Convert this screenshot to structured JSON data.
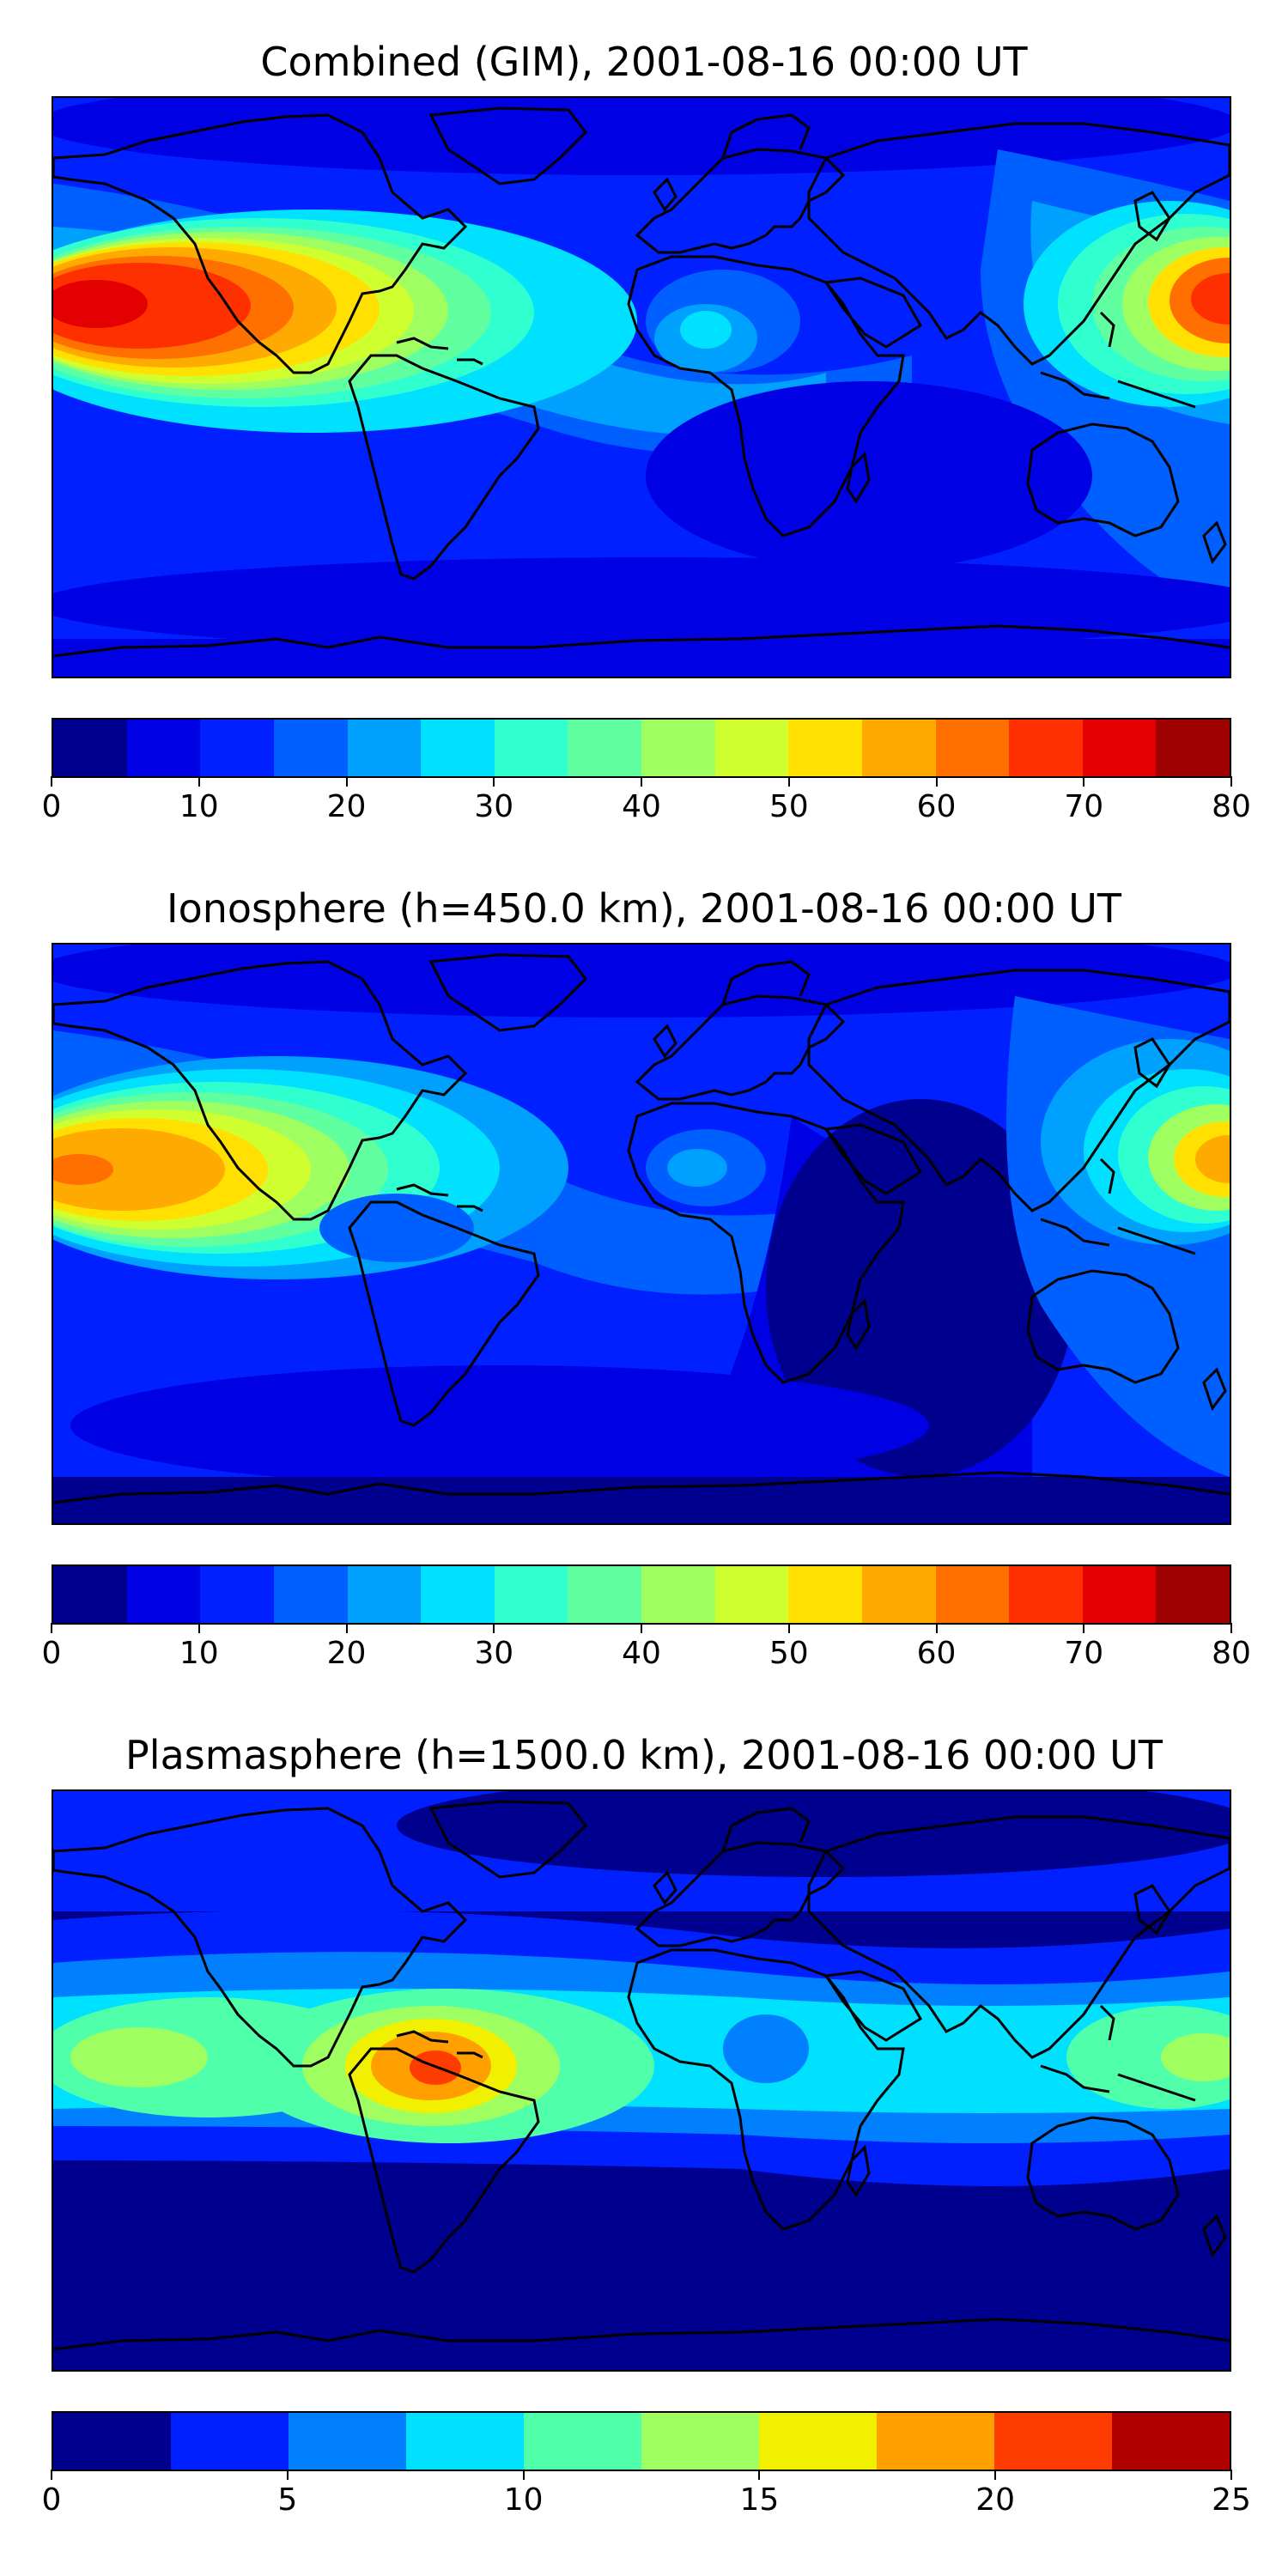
{
  "panels": [
    {
      "title": "Combined (GIM), 2001-08-16 00:00 UT",
      "colorbar": {
        "ticks": [
          "0",
          "10",
          "20",
          "30",
          "40",
          "50",
          "60",
          "70",
          "80"
        ],
        "colors": [
          "#00008f",
          "#0000e4",
          "#0020ff",
          "#0060ff",
          "#00a0ff",
          "#00e0ff",
          "#30ffcf",
          "#60ff9f",
          "#a0ff60",
          "#d0ff30",
          "#ffe000",
          "#ffaa00",
          "#ff7000",
          "#ff3000",
          "#e40000",
          "#9f0000"
        ]
      }
    },
    {
      "title": "Ionosphere  (h=450.0 km), 2001-08-16 00:00 UT",
      "colorbar": {
        "ticks": [
          "0",
          "10",
          "20",
          "30",
          "40",
          "50",
          "60",
          "70",
          "80"
        ],
        "colors": [
          "#00008f",
          "#0000e4",
          "#0020ff",
          "#0060ff",
          "#00a0ff",
          "#00e0ff",
          "#30ffcf",
          "#60ff9f",
          "#a0ff60",
          "#d0ff30",
          "#ffe000",
          "#ffaa00",
          "#ff7000",
          "#ff3000",
          "#e40000",
          "#9f0000"
        ]
      }
    },
    {
      "title": "Plasmasphere (h=1500.0 km), 2001-08-16 00:00 UT",
      "colorbar": {
        "ticks": [
          "0",
          "5",
          "10",
          "15",
          "20",
          "25"
        ],
        "colors": [
          "#00008f",
          "#0020ff",
          "#0080ff",
          "#00e0ff",
          "#50ffaa",
          "#a0ff60",
          "#f0f000",
          "#ffa000",
          "#ff3c00",
          "#b00000"
        ]
      }
    }
  ]
}
